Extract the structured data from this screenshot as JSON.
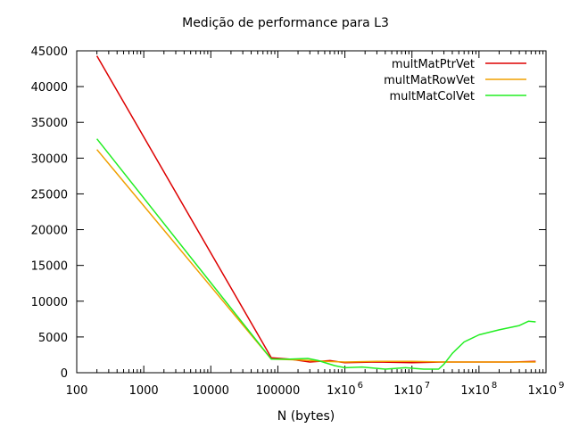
{
  "chart_data": {
    "type": "line",
    "title": "Medição de performance para L3",
    "xlabel": "N (bytes)",
    "ylabel": "",
    "xscale": "log",
    "xlim": [
      100,
      1000000000
    ],
    "ylim": [
      0,
      45000
    ],
    "grid": false,
    "legend_position": "top-right",
    "x_tick_values": [
      100,
      1000,
      10000,
      100000,
      1000000,
      10000000,
      100000000,
      1000000000
    ],
    "x_tick_labels": [
      {
        "main": "100",
        "exp": ""
      },
      {
        "main": "1000",
        "exp": ""
      },
      {
        "main": "10000",
        "exp": ""
      },
      {
        "main": "100000",
        "exp": ""
      },
      {
        "main": "1x10",
        "exp": "6"
      },
      {
        "main": "1x10",
        "exp": "7"
      },
      {
        "main": "1x10",
        "exp": "8"
      },
      {
        "main": "1x10",
        "exp": "9"
      }
    ],
    "y_tick_values": [
      0,
      5000,
      10000,
      15000,
      20000,
      25000,
      30000,
      35000,
      40000,
      45000
    ],
    "y_tick_labels": [
      "0",
      "5000",
      "10000",
      "15000",
      "20000",
      "25000",
      "30000",
      "35000",
      "40000",
      "45000"
    ],
    "series": [
      {
        "name": "multMatPtrVet",
        "color": "#dd0000",
        "points": [
          [
            200,
            44300
          ],
          [
            80000,
            2100
          ],
          [
            150000,
            1900
          ],
          [
            300000,
            1500
          ],
          [
            600000,
            1700
          ],
          [
            1000000,
            1400
          ],
          [
            3000000,
            1500
          ],
          [
            10000000,
            1400
          ],
          [
            30000000,
            1500
          ],
          [
            100000000,
            1500
          ],
          [
            300000000,
            1500
          ],
          [
            700000000,
            1600
          ]
        ]
      },
      {
        "name": "multMatRowVet",
        "color": "#f0a000",
        "points": [
          [
            200,
            31200
          ],
          [
            80000,
            1900
          ],
          [
            200000,
            1800
          ],
          [
            500000,
            1600
          ],
          [
            1000000,
            1500
          ],
          [
            3000000,
            1600
          ],
          [
            10000000,
            1600
          ],
          [
            30000000,
            1500
          ],
          [
            100000000,
            1500
          ],
          [
            300000000,
            1500
          ],
          [
            700000000,
            1500
          ]
        ]
      },
      {
        "name": "multMatColVet",
        "color": "#22ee22",
        "points": [
          [
            200,
            32700
          ],
          [
            80000,
            1900
          ],
          [
            150000,
            1900
          ],
          [
            280000,
            2000
          ],
          [
            400000,
            1700
          ],
          [
            700000,
            1000
          ],
          [
            1000000,
            700
          ],
          [
            1800000,
            800
          ],
          [
            4000000,
            500
          ],
          [
            8000000,
            700
          ],
          [
            15000000,
            500
          ],
          [
            25000000,
            500
          ],
          [
            30000000,
            1200
          ],
          [
            40000000,
            2700
          ],
          [
            60000000,
            4300
          ],
          [
            100000000,
            5300
          ],
          [
            200000000,
            6000
          ],
          [
            400000000,
            6600
          ],
          [
            550000000,
            7200
          ],
          [
            700000000,
            7100
          ]
        ]
      }
    ]
  }
}
